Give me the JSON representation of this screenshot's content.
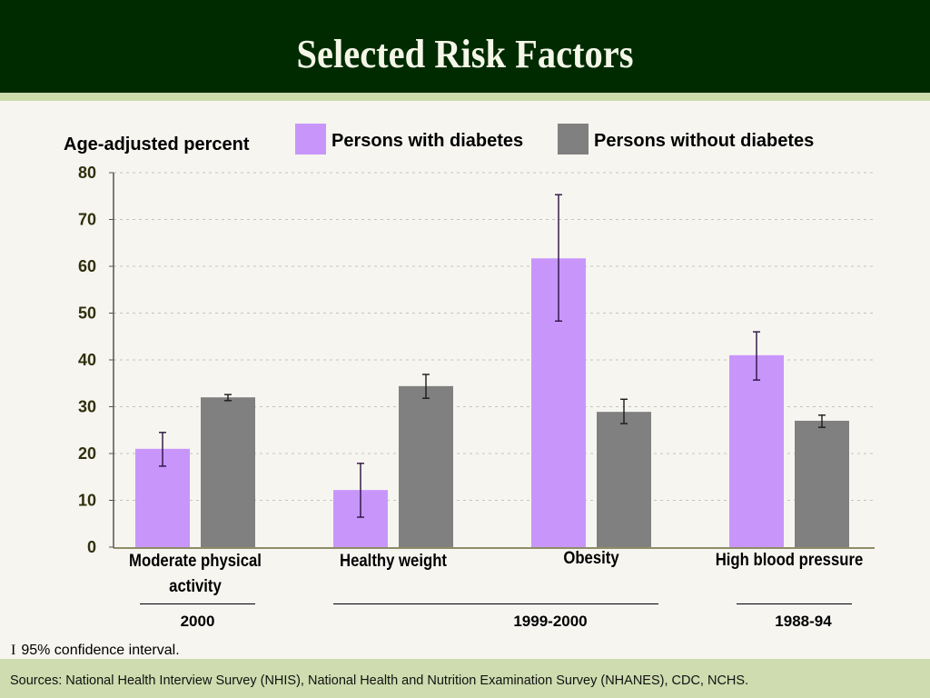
{
  "header": {
    "title": "Selected Risk Factors"
  },
  "colors": {
    "with_diabetes": "#c896fb",
    "without_diabetes": "#808080",
    "header_bg": "#002b00",
    "footer_bg": "#cedcaf"
  },
  "chart_data": {
    "type": "bar",
    "title": "Selected Risk Factors",
    "xlabel": "",
    "ylabel": "Age-adjusted percent",
    "ylim": [
      0,
      80
    ],
    "yticks": [
      0,
      10,
      20,
      30,
      40,
      50,
      60,
      70,
      80
    ],
    "grid": true,
    "legend_position": "top-right",
    "categories": [
      "Moderate physical activity",
      "Healthy weight",
      "Obesity",
      "High blood pressure"
    ],
    "category_lines": [
      [
        "Moderate physical",
        "activity"
      ],
      [
        "Healthy weight"
      ],
      [
        "Obesity"
      ],
      [
        "High blood pressure"
      ]
    ],
    "series": [
      {
        "name": "Persons with diabetes",
        "values": [
          21.0,
          12.2,
          61.7,
          41.0
        ],
        "ci_low": [
          17.3,
          6.4,
          48.3,
          35.7
        ],
        "ci_high": [
          24.5,
          17.9,
          75.3,
          46.0
        ]
      },
      {
        "name": "Persons without diabetes",
        "values": [
          32.0,
          34.4,
          28.9,
          27.0
        ],
        "ci_low": [
          31.3,
          31.8,
          26.4,
          25.6
        ],
        "ci_high": [
          32.6,
          36.9,
          31.6,
          28.2
        ]
      }
    ],
    "periods": [
      {
        "label": "2000",
        "categories": [
          "Moderate physical activity"
        ]
      },
      {
        "label": "1999-2000",
        "categories": [
          "Healthy weight",
          "Obesity"
        ]
      },
      {
        "label": "1988-94",
        "categories": [
          "High blood pressure"
        ]
      }
    ],
    "annotation": "95% confidence interval."
  },
  "notes": {
    "ci_glyph": "I",
    "ci_text": "95% confidence interval.",
    "sources": "Sources: National Health Interview Survey (NHIS), National Health and Nutrition Examination Survey (NHANES), CDC, NCHS."
  }
}
